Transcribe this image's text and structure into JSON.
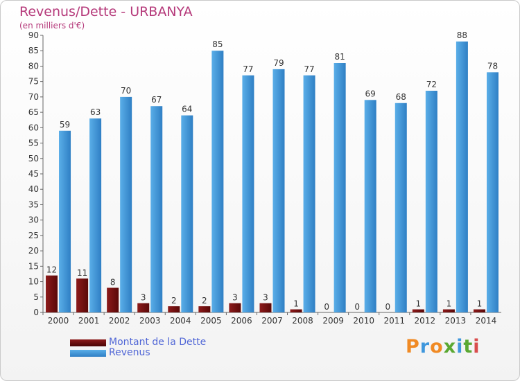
{
  "header": {
    "title": "Revenus/Dette - URBANYA",
    "subtitle": "(en milliers d'€)"
  },
  "chart_data": {
    "type": "bar",
    "title": "Revenus/Dette - URBANYA",
    "subtitle": "(en milliers d'€)",
    "categories": [
      "2000",
      "2001",
      "2002",
      "2003",
      "2004",
      "2005",
      "2006",
      "2007",
      "2008",
      "2009",
      "2010",
      "2011",
      "2012",
      "2013",
      "2014"
    ],
    "series": [
      {
        "name": "Montant de la Dette",
        "color": "#7a0f0f",
        "values": [
          12,
          11,
          8,
          3,
          2,
          2,
          3,
          3,
          1,
          0,
          0,
          0,
          1,
          1,
          1
        ]
      },
      {
        "name": "Revenus",
        "color": "#3f97dc",
        "values": [
          59,
          63,
          70,
          67,
          64,
          85,
          77,
          79,
          77,
          81,
          69,
          68,
          72,
          88,
          78
        ]
      }
    ],
    "ylim": [
      0,
      90
    ],
    "ytick_step": 5,
    "grid": false,
    "legend": "bottom-left"
  },
  "branding": {
    "letters": [
      {
        "char": "P",
        "color": "#f08a24"
      },
      {
        "char": "r",
        "color": "#3f97dc"
      },
      {
        "char": "o",
        "color": "#f08a24"
      },
      {
        "char": "x",
        "color": "#5aa832"
      },
      {
        "char": "i",
        "color": "#3f97dc"
      },
      {
        "char": "t",
        "color": "#5aa832"
      },
      {
        "char": "i",
        "color": "#d94c4c"
      }
    ]
  }
}
